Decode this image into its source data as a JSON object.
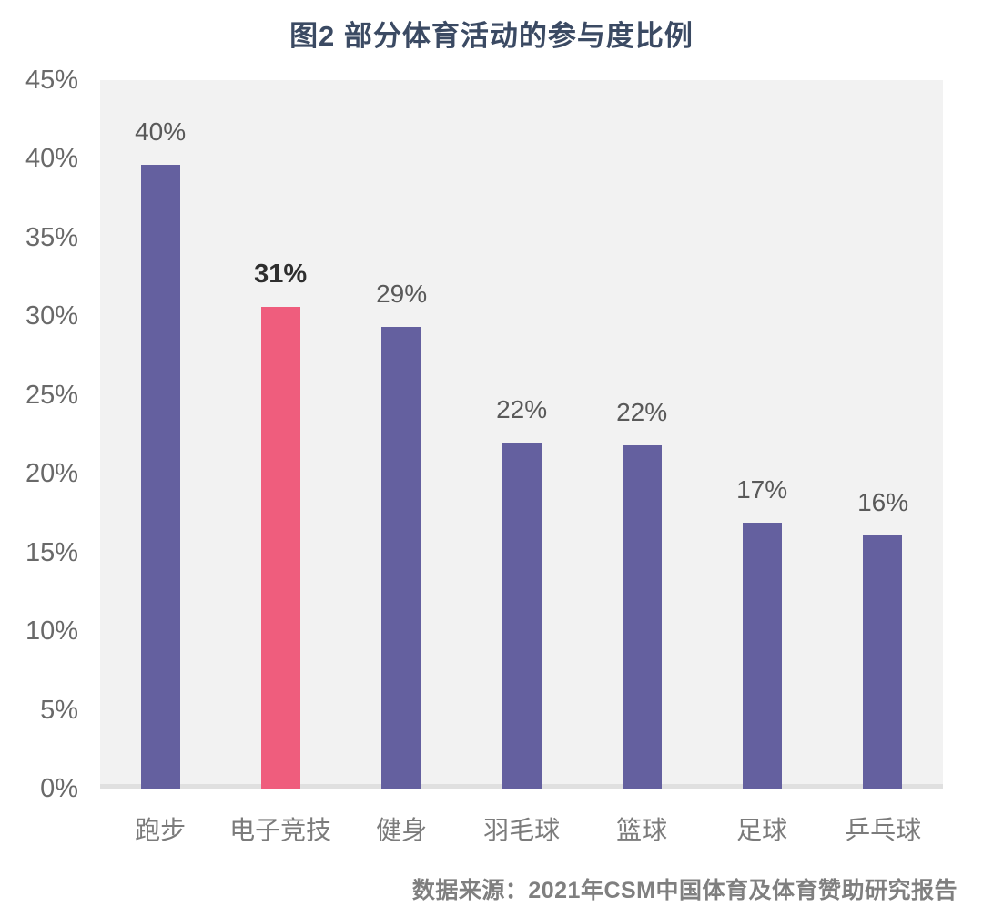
{
  "chart_data": {
    "type": "bar",
    "title": "图2 部分体育活动的参与度比例",
    "categories": [
      "跑步",
      "电子竞技",
      "健身",
      "羽毛球",
      "篮球",
      "足球",
      "乒乓球"
    ],
    "values": [
      40,
      31,
      29,
      22,
      22,
      17,
      16
    ],
    "value_labels": [
      "40%",
      "31%",
      "29%",
      "22%",
      "22%",
      "17%",
      "16%"
    ],
    "rendered_bar_percents": [
      39.6,
      30.6,
      29.3,
      22.0,
      21.8,
      16.9,
      16.1
    ],
    "highlight_index": 1,
    "ylim": [
      0,
      45
    ],
    "y_ticks": [
      0,
      5,
      10,
      15,
      20,
      25,
      30,
      35,
      40,
      45
    ],
    "y_tick_labels": [
      "0%",
      "5%",
      "10%",
      "15%",
      "20%",
      "25%",
      "30%",
      "35%",
      "40%",
      "45%"
    ],
    "grid": false,
    "legend": false,
    "xlabel": "",
    "ylabel": "",
    "colors": {
      "bar": "#64609f",
      "highlight_bar": "#ef5d7d",
      "plot_background": "#f2f2f2",
      "baseline": "#e0e0e0",
      "title": "#3b4a63",
      "value_label": "#595959",
      "highlight_value_label": "#2e2e2e",
      "y_axis_label": "#696969",
      "x_axis_label": "#7b7b7b",
      "source": "#7f7f7f"
    },
    "source": "数据来源：2021年CSM中国体育及体育赞助研究报告"
  }
}
